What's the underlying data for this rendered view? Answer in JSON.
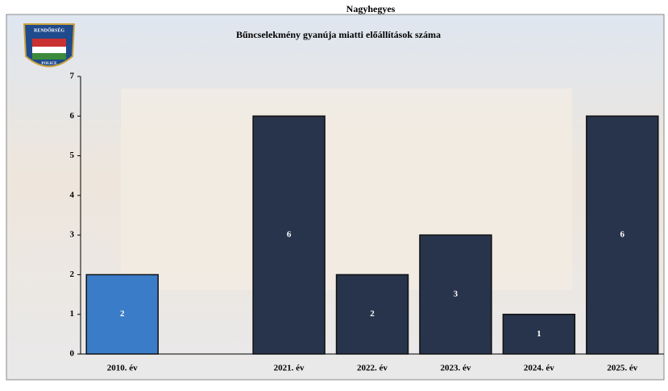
{
  "chart_data": {
    "type": "bar",
    "title": "Nagyhegyes",
    "subtitle": "Bűncselekmény gyanúja miatti előállítások száma",
    "logo": {
      "top": "RENDŐRSÉG",
      "bottom": "POLICE"
    },
    "categories": [
      "2010. év",
      null,
      "2021. év",
      "2022. év",
      "2023. év",
      "2024. év",
      "2025. év"
    ],
    "values": [
      2,
      null,
      6,
      2,
      3,
      1,
      6
    ],
    "colors": [
      "#3b7cc9",
      null,
      "#28344b",
      "#28344b",
      "#28344b",
      "#28344b",
      "#28344b"
    ],
    "ylim": [
      0,
      7
    ],
    "yticks": [
      0,
      1,
      2,
      3,
      4,
      5,
      6,
      7
    ],
    "grid": false
  }
}
